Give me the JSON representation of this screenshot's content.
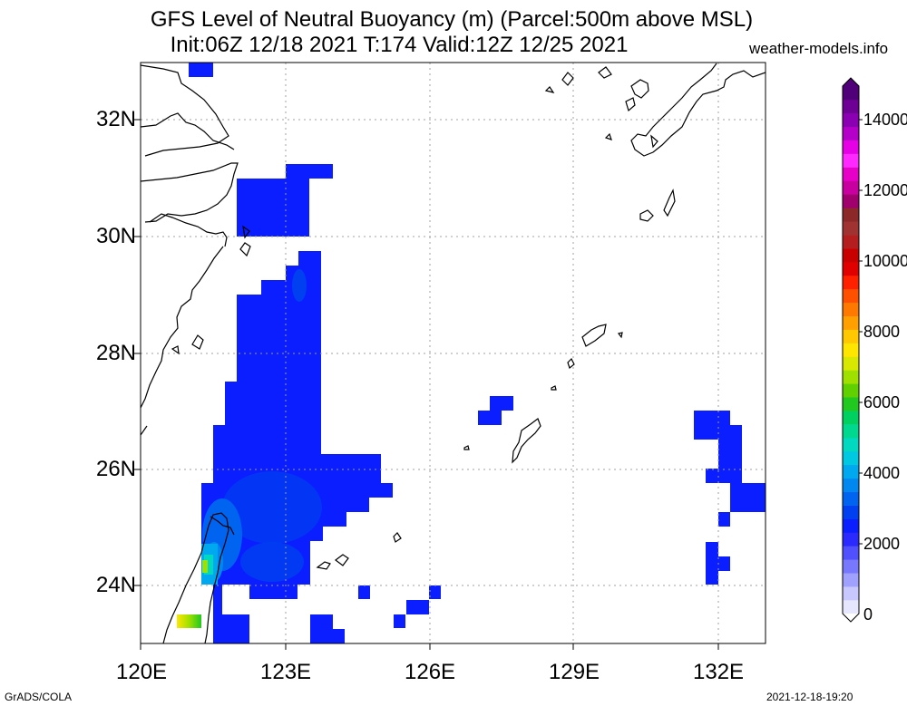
{
  "title_line1": "GFS Level of Neutral Buoyancy (m) (Parcel:500m above MSL)",
  "title_line2": "Init:06Z 12/18 2021 T:174 Valid:12Z 12/25 2021",
  "site": "weather-models.info",
  "lat_labels": [
    "32N",
    "30N",
    "28N",
    "26N",
    "24N"
  ],
  "lon_labels": [
    "120E",
    "123E",
    "126E",
    "129E",
    "132E"
  ],
  "colorbar": {
    "labels": [
      "14000",
      "12000",
      "10000",
      "8000",
      "6000",
      "4000",
      "2000",
      "0"
    ],
    "colors": [
      "#e6e6ff",
      "#c8c8ff",
      "#a0a0ff",
      "#7878ff",
      "#5050ff",
      "#2a2aff",
      "#0a1eff",
      "#0040f0",
      "#0064f0",
      "#0088f0",
      "#00a8f0",
      "#00c8e0",
      "#00d8c0",
      "#00d890",
      "#00d060",
      "#20c820",
      "#60d000",
      "#a0e000",
      "#d8e800",
      "#ffe600",
      "#ffc800",
      "#ffa000",
      "#ff7800",
      "#ff5000",
      "#ff2000",
      "#e00000",
      "#c80000",
      "#b41e1e",
      "#a03232",
      "#8c2828",
      "#a0006e",
      "#c800a0",
      "#e600c8",
      "#ff28ff",
      "#e600e6",
      "#b400c8",
      "#8c00b4",
      "#6e0096",
      "#500078"
    ]
  },
  "footer_left": "GrADS/COLA",
  "footer_right": "2021-12-18-19:20"
}
